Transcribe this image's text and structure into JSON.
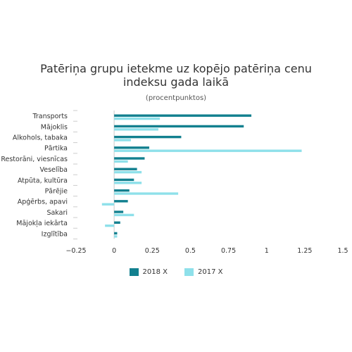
{
  "chart_data": {
    "type": "bar",
    "orientation": "horizontal",
    "title": "Patēriņa grupu ietekme uz kopējo patēriņa cenu indeksu gada laikā",
    "subtitle": "(procentpunktos)",
    "categories": [
      "Transports",
      "Mājoklis",
      "Alkohols, tabaka",
      "Pārtika",
      "Restorāni, viesnīcas",
      "Veselība",
      "Atpūta, kultūra",
      "Pārējie",
      "Apģērbs, apavi",
      "Sakari",
      "Mājokļa iekārta",
      "Izglītība"
    ],
    "series": [
      {
        "name": "2018 X",
        "color": "#12808f",
        "values": [
          0.9,
          0.85,
          0.44,
          0.23,
          0.2,
          0.15,
          0.13,
          0.1,
          0.09,
          0.06,
          0.04,
          0.02
        ]
      },
      {
        "name": "2017 X",
        "color": "#8ee0ea",
        "values": [
          0.3,
          0.29,
          0.11,
          1.23,
          0.09,
          0.18,
          0.18,
          0.42,
          -0.08,
          0.13,
          -0.06,
          0.02
        ]
      }
    ],
    "xlim": [
      -0.25,
      1.5
    ],
    "xticks": [
      "−0.25",
      "0",
      "0.25",
      "0.5",
      "0.75",
      "1",
      "1.25",
      "1.5"
    ],
    "grid": false,
    "legend_position": "bottom"
  }
}
